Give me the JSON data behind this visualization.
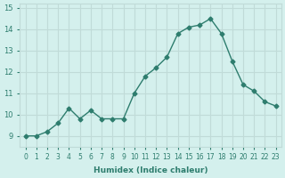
{
  "x": [
    0,
    1,
    2,
    3,
    4,
    5,
    6,
    7,
    8,
    9,
    10,
    11,
    12,
    13,
    14,
    15,
    16,
    17,
    18,
    19,
    20,
    21,
    22,
    23
  ],
  "y": [
    9.0,
    9.0,
    9.2,
    9.6,
    10.3,
    9.8,
    10.2,
    9.8,
    9.8,
    9.8,
    11.0,
    11.8,
    12.2,
    12.7,
    13.8,
    14.1,
    14.2,
    14.5,
    13.8,
    12.5,
    11.4,
    11.1,
    10.6,
    10.4
  ],
  "line_color": "#2e7d6e",
  "marker": "D",
  "marker_size": 2.5,
  "bg_color": "#d4f0ed",
  "grid_color": "#c0dbd8",
  "xlabel": "Humidex (Indice chaleur)",
  "xlim": [
    -0.5,
    23.5
  ],
  "ylim": [
    8.5,
    15.2
  ],
  "yticks": [
    9,
    10,
    11,
    12,
    13,
    14,
    15
  ],
  "xticks": [
    0,
    1,
    2,
    3,
    4,
    5,
    6,
    7,
    8,
    9,
    10,
    11,
    12,
    13,
    14,
    15,
    16,
    17,
    18,
    19,
    20,
    21,
    22,
    23
  ],
  "tick_color": "#2e7d6e",
  "label_color": "#2e7d6e"
}
